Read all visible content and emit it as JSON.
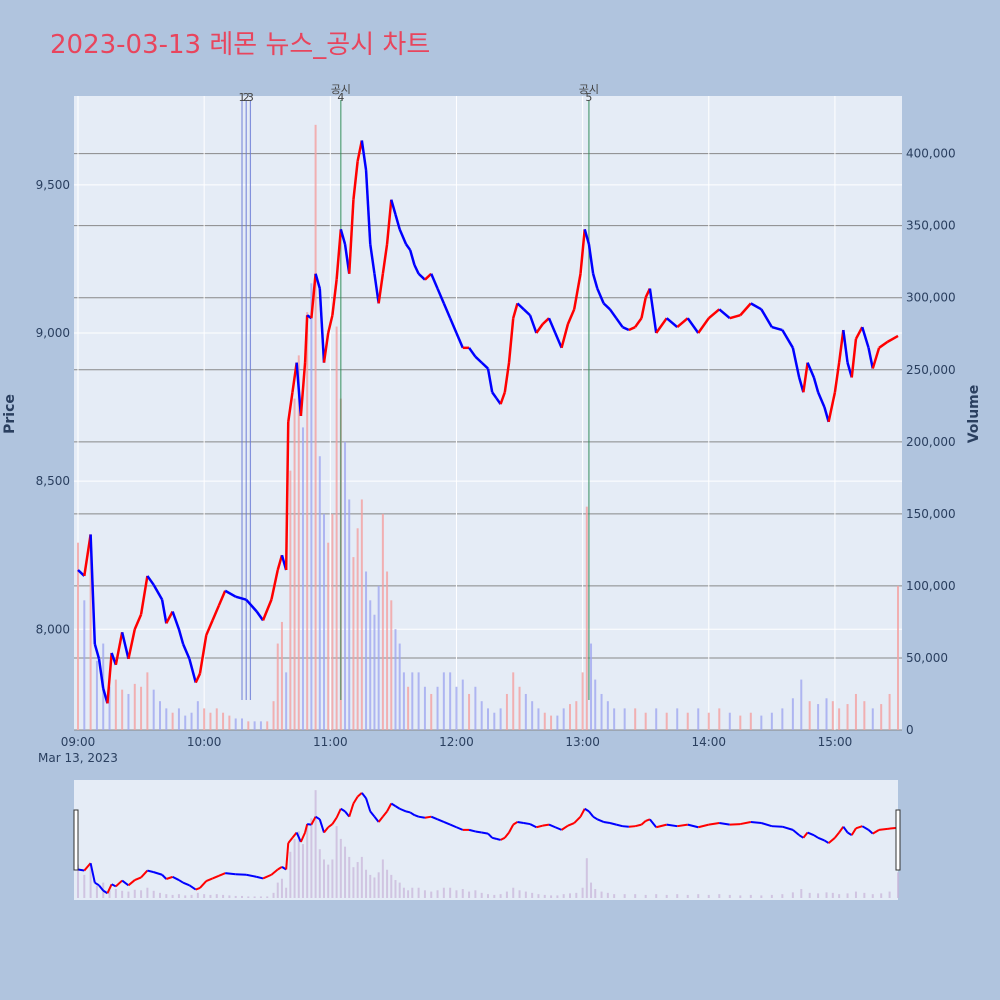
{
  "title": "2023-03-13 레몬 뉴스_공시 차트",
  "chart_data": {
    "type": "candlestick",
    "date_label": "Mar 13, 2023",
    "ylabel_left": "Price",
    "ylabel_right": "Volume",
    "price_range": [
      7660,
      9800
    ],
    "volume_range": [
      0,
      440000
    ],
    "price_ticks": [
      8000,
      8500,
      9000,
      9500
    ],
    "price_tick_labels": [
      "8,000",
      "8,500",
      "9,000",
      "9,500"
    ],
    "volume_ticks": [
      0,
      50000,
      100000,
      150000,
      200000,
      250000,
      300000,
      350000,
      400000
    ],
    "volume_tick_labels": [
      "0",
      "50,000",
      "100,000",
      "150,000",
      "200,000",
      "250,000",
      "300,000",
      "350,000",
      "400,000"
    ],
    "x_ticks": [
      "09:00",
      "10:00",
      "11:00",
      "12:00",
      "13:00",
      "14:00",
      "15:00"
    ],
    "x_range_minutes": [
      0,
      390
    ],
    "up_color": "#ff0000",
    "down_color": "#0000ff",
    "price_path": [
      [
        0,
        8200
      ],
      [
        3,
        8180
      ],
      [
        6,
        8320
      ],
      [
        8,
        7950
      ],
      [
        10,
        7900
      ],
      [
        12,
        7800
      ],
      [
        14,
        7750
      ],
      [
        16,
        7920
      ],
      [
        18,
        7880
      ],
      [
        21,
        7990
      ],
      [
        24,
        7900
      ],
      [
        27,
        8000
      ],
      [
        30,
        8050
      ],
      [
        33,
        8180
      ],
      [
        36,
        8150
      ],
      [
        40,
        8100
      ],
      [
        42,
        8020
      ],
      [
        45,
        8060
      ],
      [
        48,
        8000
      ],
      [
        50,
        7950
      ],
      [
        53,
        7900
      ],
      [
        56,
        7820
      ],
      [
        58,
        7850
      ],
      [
        61,
        7980
      ],
      [
        64,
        8030
      ],
      [
        67,
        8080
      ],
      [
        70,
        8130
      ],
      [
        75,
        8110
      ],
      [
        80,
        8100
      ],
      [
        85,
        8060
      ],
      [
        88,
        8030
      ],
      [
        92,
        8100
      ],
      [
        95,
        8200
      ],
      [
        97,
        8250
      ],
      [
        99,
        8200
      ],
      [
        100,
        8700
      ],
      [
        102,
        8800
      ],
      [
        104,
        8900
      ],
      [
        106,
        8720
      ],
      [
        108,
        8900
      ],
      [
        109,
        9060
      ],
      [
        111,
        9050
      ],
      [
        113,
        9200
      ],
      [
        115,
        9150
      ],
      [
        117,
        8900
      ],
      [
        119,
        9000
      ],
      [
        121,
        9060
      ],
      [
        123,
        9180
      ],
      [
        125,
        9350
      ],
      [
        127,
        9300
      ],
      [
        129,
        9200
      ],
      [
        131,
        9450
      ],
      [
        133,
        9580
      ],
      [
        135,
        9650
      ],
      [
        137,
        9550
      ],
      [
        139,
        9300
      ],
      [
        141,
        9200
      ],
      [
        143,
        9100
      ],
      [
        145,
        9200
      ],
      [
        147,
        9300
      ],
      [
        149,
        9450
      ],
      [
        151,
        9400
      ],
      [
        153,
        9350
      ],
      [
        156,
        9300
      ],
      [
        158,
        9280
      ],
      [
        160,
        9230
      ],
      [
        162,
        9200
      ],
      [
        165,
        9180
      ],
      [
        168,
        9200
      ],
      [
        171,
        9150
      ],
      [
        174,
        9100
      ],
      [
        177,
        9050
      ],
      [
        180,
        9000
      ],
      [
        183,
        8950
      ],
      [
        186,
        8950
      ],
      [
        189,
        8920
      ],
      [
        192,
        8900
      ],
      [
        195,
        8880
      ],
      [
        197,
        8800
      ],
      [
        199,
        8780
      ],
      [
        201,
        8760
      ],
      [
        203,
        8800
      ],
      [
        205,
        8900
      ],
      [
        207,
        9050
      ],
      [
        209,
        9100
      ],
      [
        212,
        9080
      ],
      [
        215,
        9060
      ],
      [
        218,
        9000
      ],
      [
        221,
        9030
      ],
      [
        224,
        9050
      ],
      [
        227,
        9000
      ],
      [
        230,
        8950
      ],
      [
        233,
        9030
      ],
      [
        236,
        9080
      ],
      [
        239,
        9200
      ],
      [
        241,
        9350
      ],
      [
        243,
        9300
      ],
      [
        245,
        9200
      ],
      [
        247,
        9150
      ],
      [
        250,
        9100
      ],
      [
        253,
        9080
      ],
      [
        256,
        9050
      ],
      [
        259,
        9020
      ],
      [
        262,
        9010
      ],
      [
        265,
        9020
      ],
      [
        268,
        9050
      ],
      [
        270,
        9120
      ],
      [
        272,
        9150
      ],
      [
        275,
        9000
      ],
      [
        280,
        9050
      ],
      [
        285,
        9020
      ],
      [
        290,
        9050
      ],
      [
        295,
        9000
      ],
      [
        300,
        9050
      ],
      [
        305,
        9080
      ],
      [
        310,
        9050
      ],
      [
        315,
        9060
      ],
      [
        320,
        9100
      ],
      [
        325,
        9080
      ],
      [
        330,
        9020
      ],
      [
        335,
        9010
      ],
      [
        340,
        8950
      ],
      [
        343,
        8850
      ],
      [
        345,
        8800
      ],
      [
        347,
        8900
      ],
      [
        350,
        8850
      ],
      [
        352,
        8800
      ],
      [
        355,
        8750
      ],
      [
        357,
        8700
      ],
      [
        360,
        8800
      ],
      [
        362,
        8900
      ],
      [
        364,
        9010
      ],
      [
        366,
        8900
      ],
      [
        368,
        8850
      ],
      [
        370,
        8980
      ],
      [
        373,
        9020
      ],
      [
        376,
        8950
      ],
      [
        378,
        8880
      ],
      [
        381,
        8950
      ],
      [
        385,
        8970
      ],
      [
        390,
        8990
      ]
    ],
    "volume_bars": [
      [
        0,
        130000
      ],
      [
        3,
        90000
      ],
      [
        6,
        125000
      ],
      [
        9,
        48000
      ],
      [
        12,
        60000
      ],
      [
        15,
        30000
      ],
      [
        18,
        35000
      ],
      [
        21,
        28000
      ],
      [
        24,
        25000
      ],
      [
        27,
        32000
      ],
      [
        30,
        30000
      ],
      [
        33,
        40000
      ],
      [
        36,
        28000
      ],
      [
        39,
        20000
      ],
      [
        42,
        15000
      ],
      [
        45,
        12000
      ],
      [
        48,
        15000
      ],
      [
        51,
        10000
      ],
      [
        54,
        12000
      ],
      [
        57,
        20000
      ],
      [
        60,
        15000
      ],
      [
        63,
        12000
      ],
      [
        66,
        15000
      ],
      [
        69,
        12000
      ],
      [
        72,
        10000
      ],
      [
        75,
        8000
      ],
      [
        78,
        8000
      ],
      [
        81,
        6000
      ],
      [
        84,
        6000
      ],
      [
        87,
        6000
      ],
      [
        90,
        6000
      ],
      [
        93,
        20000
      ],
      [
        95,
        60000
      ],
      [
        97,
        75000
      ],
      [
        99,
        40000
      ],
      [
        101,
        180000
      ],
      [
        103,
        230000
      ],
      [
        105,
        260000
      ],
      [
        107,
        210000
      ],
      [
        109,
        290000
      ],
      [
        111,
        310000
      ],
      [
        113,
        420000
      ],
      [
        115,
        190000
      ],
      [
        117,
        150000
      ],
      [
        119,
        130000
      ],
      [
        121,
        150000
      ],
      [
        123,
        280000
      ],
      [
        125,
        230000
      ],
      [
        127,
        200000
      ],
      [
        129,
        160000
      ],
      [
        131,
        120000
      ],
      [
        133,
        140000
      ],
      [
        135,
        160000
      ],
      [
        137,
        110000
      ],
      [
        139,
        90000
      ],
      [
        141,
        80000
      ],
      [
        143,
        100000
      ],
      [
        145,
        150000
      ],
      [
        147,
        110000
      ],
      [
        149,
        90000
      ],
      [
        151,
        70000
      ],
      [
        153,
        60000
      ],
      [
        155,
        40000
      ],
      [
        157,
        30000
      ],
      [
        159,
        40000
      ],
      [
        162,
        40000
      ],
      [
        165,
        30000
      ],
      [
        168,
        25000
      ],
      [
        171,
        30000
      ],
      [
        174,
        40000
      ],
      [
        177,
        40000
      ],
      [
        180,
        30000
      ],
      [
        183,
        35000
      ],
      [
        186,
        25000
      ],
      [
        189,
        30000
      ],
      [
        192,
        20000
      ],
      [
        195,
        15000
      ],
      [
        198,
        12000
      ],
      [
        201,
        15000
      ],
      [
        204,
        25000
      ],
      [
        207,
        40000
      ],
      [
        210,
        30000
      ],
      [
        213,
        25000
      ],
      [
        216,
        20000
      ],
      [
        219,
        15000
      ],
      [
        222,
        12000
      ],
      [
        225,
        10000
      ],
      [
        228,
        10000
      ],
      [
        231,
        15000
      ],
      [
        234,
        18000
      ],
      [
        237,
        20000
      ],
      [
        240,
        40000
      ],
      [
        242,
        155000
      ],
      [
        244,
        60000
      ],
      [
        246,
        35000
      ],
      [
        249,
        25000
      ],
      [
        252,
        20000
      ],
      [
        255,
        15000
      ],
      [
        260,
        15000
      ],
      [
        265,
        15000
      ],
      [
        270,
        12000
      ],
      [
        275,
        15000
      ],
      [
        280,
        12000
      ],
      [
        285,
        15000
      ],
      [
        290,
        12000
      ],
      [
        295,
        15000
      ],
      [
        300,
        12000
      ],
      [
        305,
        15000
      ],
      [
        310,
        12000
      ],
      [
        315,
        10000
      ],
      [
        320,
        12000
      ],
      [
        325,
        10000
      ],
      [
        330,
        12000
      ],
      [
        335,
        15000
      ],
      [
        340,
        22000
      ],
      [
        344,
        35000
      ],
      [
        348,
        20000
      ],
      [
        352,
        18000
      ],
      [
        356,
        22000
      ],
      [
        359,
        20000
      ],
      [
        362,
        15000
      ],
      [
        366,
        18000
      ],
      [
        370,
        25000
      ],
      [
        374,
        20000
      ],
      [
        378,
        15000
      ],
      [
        382,
        18000
      ],
      [
        386,
        25000
      ],
      [
        390,
        100000
      ]
    ],
    "annotations": [
      {
        "minute": 78,
        "label": "1"
      },
      {
        "minute": 80,
        "label": "2"
      },
      {
        "minute": 82,
        "label": "3"
      },
      {
        "minute": 125,
        "label": "4",
        "title": "공시"
      },
      {
        "minute": 243,
        "label": "5",
        "title": "공시"
      }
    ]
  }
}
